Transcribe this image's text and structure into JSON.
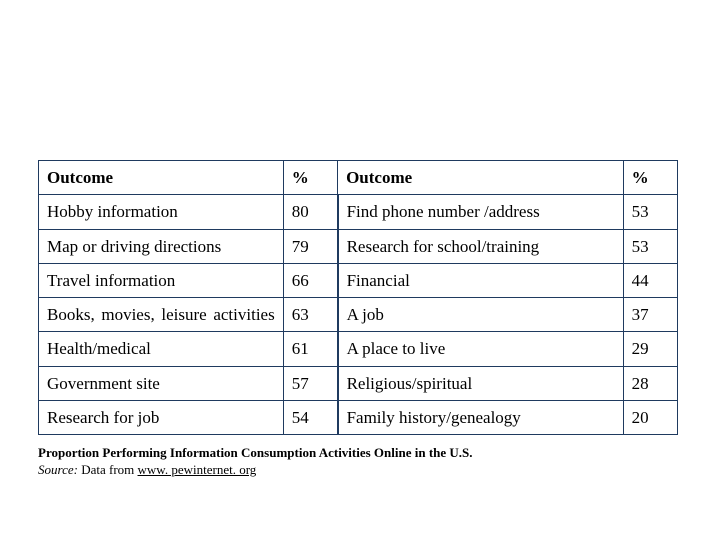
{
  "table": {
    "type": "table",
    "border_color": "#1f3a5f",
    "text_color": "#000000",
    "font_family": "Times New Roman",
    "header_fontsize": 17,
    "cell_fontsize": 17,
    "columns": [
      {
        "label": "Outcome",
        "width_pct": 36,
        "align": "left"
      },
      {
        "label": "%",
        "width_pct": 8,
        "align": "left"
      },
      {
        "label": "Outcome",
        "width_pct": 42,
        "align": "left"
      },
      {
        "label": "%",
        "width_pct": 8,
        "align": "left"
      }
    ],
    "rows": [
      {
        "outcome_a": "Hobby information",
        "pct_a": "80",
        "outcome_b": "Find phone number /address",
        "pct_b": "53"
      },
      {
        "outcome_a": "Map or driving directions",
        "pct_a": "79",
        "outcome_b": "Research for school/training",
        "pct_b": "53"
      },
      {
        "outcome_a": "Travel information",
        "pct_a": "66",
        "outcome_b": "Financial",
        "pct_b": "44"
      },
      {
        "outcome_a": "Books, movies, leisure activities",
        "pct_a": "63",
        "outcome_b": "A job",
        "pct_b": "37",
        "justify_a": true
      },
      {
        "outcome_a": "Health/medical",
        "pct_a": "61",
        "outcome_b": "A place to live",
        "pct_b": "29"
      },
      {
        "outcome_a": "Government site",
        "pct_a": "57",
        "outcome_b": "Religious/spiritual",
        "pct_b": "28"
      },
      {
        "outcome_a": "Research for job",
        "pct_a": "54",
        "outcome_b": "Family history/genealogy",
        "pct_b": "20"
      }
    ]
  },
  "caption": {
    "title": "Proportion Performing Information Consumption Activities Online in the U.S.",
    "source_label": "Source:",
    "source_text": " Data from ",
    "source_link": "www. pewinternet. org"
  }
}
